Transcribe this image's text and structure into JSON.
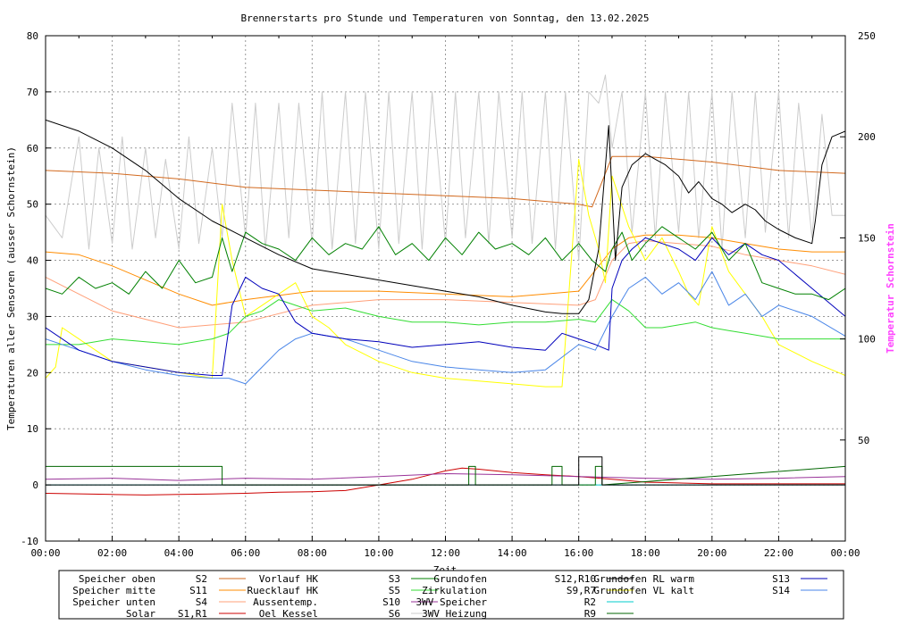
{
  "chart_data": {
    "type": "line",
    "title": "Brennerstarts pro Stunde und Temperaturen von Sonntag, den 13.02.2025",
    "xlabel": "Zeit",
    "ylabel": "Temperaturen aller Sensoren (ausser Schornstein)",
    "y2label": "Temperatur Schornstein",
    "xlim": [
      0,
      24
    ],
    "ylim": [
      -10,
      80
    ],
    "y2lim": [
      0,
      250
    ],
    "x_ticks": [
      "00:00",
      "02:00",
      "04:00",
      "06:00",
      "08:00",
      "10:00",
      "12:00",
      "14:00",
      "16:00",
      "18:00",
      "20:00",
      "22:00",
      "00:00"
    ],
    "y_ticks": [
      "-10",
      "0",
      "10",
      "20",
      "30",
      "40",
      "50",
      "60",
      "70",
      "80"
    ],
    "y2_ticks": [
      "50",
      "100",
      "150",
      "200",
      "250"
    ],
    "grid": true,
    "legend_position": "bottom",
    "series": [
      {
        "name": "Speicher oben",
        "code": "S2",
        "color": "#d2691e",
        "x": [
          0,
          2,
          4,
          6,
          8,
          10,
          12,
          14,
          16,
          16.4,
          17,
          18,
          20,
          22,
          24
        ],
        "y": [
          56,
          55.5,
          54.5,
          53,
          52.5,
          52,
          51.5,
          51,
          50,
          49.5,
          58.5,
          58.5,
          57.5,
          56,
          55.5
        ]
      },
      {
        "name": "Speicher mitte",
        "code": "S11",
        "color": "#ff8c00",
        "x": [
          0,
          1,
          2,
          4,
          5,
          6,
          8,
          10,
          12,
          14,
          16,
          17,
          17.5,
          18,
          19,
          20,
          21,
          22,
          23,
          24
        ],
        "y": [
          41.5,
          41,
          39,
          34,
          32,
          33,
          34.5,
          34.5,
          34,
          33.5,
          34.5,
          42,
          44,
          44.5,
          44.5,
          44,
          43,
          42,
          41.5,
          41.5
        ]
      },
      {
        "name": "Speicher unten",
        "code": "S4",
        "color": "#ffa07a",
        "x": [
          0,
          1,
          2,
          4,
          6,
          8,
          10,
          12,
          14,
          16,
          16.5,
          17,
          17.5,
          18,
          19,
          20,
          21,
          22,
          23,
          24
        ],
        "y": [
          37,
          34,
          31,
          28,
          29,
          32,
          33,
          33,
          32.5,
          32,
          33,
          40,
          43,
          43.5,
          43,
          42.5,
          41,
          40,
          39,
          37.5
        ]
      },
      {
        "name": "Solar",
        "code": "S1,R1",
        "color": "#cc0000",
        "x": [
          0,
          2,
          3,
          4,
          5,
          6,
          7,
          8,
          9,
          10,
          11,
          12,
          12.5,
          13,
          14,
          15,
          16,
          17,
          18,
          20,
          22,
          24
        ],
        "y": [
          -1.5,
          -1.7,
          -1.8,
          -1.7,
          -1.6,
          -1.5,
          -1.3,
          -1.2,
          -1,
          0,
          1,
          2.5,
          3,
          2.8,
          2.2,
          1.8,
          1.5,
          1,
          0.5,
          0.2,
          0.2,
          0.2
        ]
      },
      {
        "name": "Vorlauf HK",
        "code": "S3",
        "color": "#008000",
        "x": [
          0,
          0.5,
          1,
          1.5,
          2,
          2.5,
          3,
          3.5,
          4,
          4.5,
          5,
          5.3,
          5.6,
          6,
          6.5,
          7,
          7.5,
          8,
          8.5,
          9,
          9.5,
          10,
          10.5,
          11,
          11.5,
          12,
          12.5,
          13,
          13.5,
          14,
          14.5,
          15,
          15.5,
          16,
          16.4,
          16.8,
          17,
          17.3,
          17.6,
          18,
          18.5,
          19,
          19.5,
          20,
          20.5,
          21,
          21.5,
          22,
          22.5,
          23,
          23.5,
          24
        ],
        "y": [
          35,
          34,
          37,
          35,
          36,
          34,
          38,
          35,
          40,
          36,
          37,
          44,
          38,
          45,
          43,
          42,
          40,
          44,
          41,
          43,
          42,
          46,
          41,
          43,
          40,
          44,
          41,
          45,
          42,
          43,
          41,
          44,
          40,
          43,
          40,
          38,
          42,
          45,
          40,
          43,
          46,
          44,
          42,
          45,
          40,
          43,
          36,
          35,
          34,
          34,
          33,
          35
        ]
      },
      {
        "name": "Ruecklauf HK",
        "code": "S5",
        "color": "#33dd33",
        "x": [
          0,
          1,
          2,
          3,
          4,
          5,
          5.5,
          6,
          6.5,
          7,
          7.5,
          8,
          9,
          10,
          11,
          12,
          13,
          14,
          15,
          16,
          16.5,
          17,
          17.5,
          18,
          18.5,
          19,
          19.5,
          20,
          20.5,
          21,
          22,
          23,
          24
        ],
        "y": [
          25,
          25,
          26,
          25.5,
          25,
          26,
          27,
          30,
          31,
          33,
          32,
          31,
          31.5,
          30,
          29,
          29,
          28.5,
          29,
          29,
          29.5,
          29,
          33,
          31,
          28,
          28,
          28.5,
          29,
          28,
          27.5,
          27,
          26,
          26,
          26
        ]
      },
      {
        "name": "Aussentemp.",
        "code": "S10",
        "color": "#993399",
        "x": [
          0,
          2,
          4,
          6,
          8,
          10,
          12,
          14,
          16,
          18,
          20,
          22,
          24
        ],
        "y": [
          1,
          1.2,
          0.8,
          1.2,
          1,
          1.5,
          2,
          1.8,
          1.5,
          1.2,
          1,
          1.2,
          1.5
        ]
      },
      {
        "name": "Oel Kessel",
        "code": "S6",
        "color": "#cccccc",
        "x": [
          0,
          0.5,
          1,
          1.3,
          1.6,
          2,
          2.3,
          2.6,
          3,
          3.3,
          3.6,
          4,
          4.3,
          4.6,
          5,
          5.3,
          5.6,
          6,
          6.3,
          6.6,
          7,
          7.3,
          7.6,
          8,
          8.3,
          8.6,
          9,
          9.3,
          9.6,
          10,
          10.3,
          10.6,
          11,
          11.3,
          11.6,
          12,
          12.3,
          12.6,
          13,
          13.3,
          13.6,
          14,
          14.3,
          14.6,
          15,
          15.3,
          15.6,
          16,
          16.3,
          16.6,
          16.8,
          17,
          17.3,
          17.6,
          18,
          18.3,
          18.6,
          19,
          19.3,
          19.6,
          20,
          20.3,
          20.6,
          21,
          21.3,
          21.6,
          22,
          22.3,
          22.6,
          23,
          23.3,
          23.6,
          24
        ],
        "y": [
          48,
          44,
          62,
          42,
          60,
          43,
          62,
          42,
          60,
          44,
          58,
          42,
          62,
          43,
          60,
          44,
          68,
          44,
          68,
          42,
          68,
          44,
          68,
          43,
          70,
          42,
          70,
          43,
          70,
          42,
          70,
          43,
          70,
          42,
          70,
          43,
          70,
          44,
          70,
          43,
          70,
          44,
          70,
          43,
          70,
          42,
          70,
          40,
          70,
          68,
          73,
          60,
          70,
          45,
          70,
          44,
          70,
          45,
          70,
          44,
          70,
          42,
          70,
          44,
          70,
          45,
          70,
          44,
          68,
          44,
          66,
          48,
          48
        ]
      },
      {
        "name": "Grundofen",
        "code": "S12,R10",
        "color": "#000000",
        "x": [
          0,
          1,
          2,
          3,
          4,
          5,
          6,
          7,
          8,
          9,
          10,
          11,
          12,
          13,
          14,
          15,
          15.5,
          16,
          16.3,
          16.6,
          16.9,
          17.1,
          17.3,
          17.6,
          18,
          18.3,
          18.6,
          19,
          19.3,
          19.6,
          20,
          20.3,
          20.6,
          21,
          21.3,
          21.6,
          22,
          22.5,
          23,
          23.1,
          23.3,
          23.6,
          24
        ],
        "y": [
          65,
          63,
          60,
          56,
          51,
          47,
          44,
          41,
          38.5,
          37.5,
          36.5,
          35.5,
          34.5,
          33.5,
          32,
          30.8,
          30.5,
          30.5,
          33,
          42,
          64,
          40,
          53,
          57,
          59,
          58,
          57,
          55,
          52,
          54,
          51,
          50,
          48.5,
          50,
          49,
          47,
          45.5,
          44,
          43,
          47,
          57,
          62,
          63
        ]
      },
      {
        "name": "Zirkulation",
        "code": "S9,R7",
        "color": "#ffff00",
        "x": [
          0,
          0.3,
          0.5,
          1,
          2,
          3,
          4,
          5,
          5.3,
          5.6,
          6,
          6.5,
          7,
          7.5,
          8,
          8.5,
          9,
          10,
          11,
          12,
          13,
          14,
          15,
          15.5,
          16,
          16.3,
          16.6,
          16.8,
          17,
          17.5,
          18,
          18.5,
          19,
          19.3,
          19.6,
          20,
          20.5,
          21,
          21.5,
          22,
          23,
          24
        ],
        "y": [
          19,
          21,
          28,
          26,
          22,
          21,
          20,
          19,
          50,
          40,
          30,
          32,
          34,
          36,
          30,
          28,
          25,
          22,
          20,
          19,
          18.5,
          18,
          17.5,
          17.5,
          58,
          48,
          42,
          36,
          55,
          46,
          40,
          44,
          38,
          34,
          32,
          46,
          38,
          34,
          30,
          25,
          22,
          19.5
        ]
      },
      {
        "name": "3WV Speicher",
        "code": "R2",
        "color": "#00cccc",
        "x": [
          0,
          24
        ],
        "y": [
          0,
          0
        ]
      },
      {
        "name": "3WV Heizung",
        "code": "R9",
        "color": "#006600",
        "x": [
          0,
          5.3,
          5.3,
          12.7,
          12.7,
          12.9,
          12.9,
          15.2,
          15.2,
          15.5,
          15.5,
          16.5,
          16.5,
          16.7,
          16.7,
          24
        ],
        "y": [
          3.3,
          3.3,
          0,
          0,
          3.3,
          3.3,
          0,
          0,
          3.3,
          3.3,
          0,
          0,
          3.3,
          3.3,
          0,
          3.3
        ]
      },
      {
        "name": "Grundofen RL warm",
        "code": "S13",
        "color": "#0000bb",
        "x": [
          0,
          1,
          2,
          3,
          4,
          5,
          5.3,
          5.6,
          6,
          6.5,
          7,
          7.5,
          8,
          9,
          10,
          11,
          12,
          13,
          14,
          15,
          15.5,
          16,
          16.5,
          16.9,
          17,
          17.3,
          17.6,
          18,
          18.5,
          19,
          19.5,
          20,
          20.5,
          21,
          21.5,
          22,
          23,
          24
        ],
        "y": [
          28,
          24,
          22,
          21,
          20,
          19.5,
          19.5,
          32,
          37,
          35,
          34,
          29,
          27,
          26,
          25.5,
          24.5,
          25,
          25.5,
          24.5,
          24,
          27,
          26,
          25,
          24,
          35,
          40,
          42,
          44,
          43,
          42,
          40,
          44,
          41,
          43,
          41,
          40,
          35,
          30
        ]
      },
      {
        "name": "Grundofen VL kalt",
        "code": "S14",
        "color": "#4a86e8",
        "x": [
          0,
          1,
          2,
          3,
          4,
          5,
          5.5,
          6,
          6.5,
          7,
          7.5,
          8,
          9,
          10,
          11,
          12,
          13,
          14,
          15,
          16,
          16.5,
          17,
          17.5,
          18,
          18.5,
          19,
          19.5,
          20,
          20.5,
          21,
          21.5,
          22,
          23,
          24
        ],
        "y": [
          26,
          24,
          22,
          20.5,
          19.5,
          19,
          19,
          18,
          21,
          24,
          26,
          27,
          26,
          24,
          22,
          21,
          20.5,
          20,
          20.5,
          25,
          24,
          30,
          35,
          37,
          34,
          36,
          33,
          38,
          32,
          34,
          30,
          32,
          30,
          26.5
        ]
      },
      {
        "name": "Brennerstarts",
        "code": "",
        "color": "#000000",
        "x": [
          0,
          16,
          16,
          16.7,
          16.7,
          24
        ],
        "y": [
          0,
          0,
          5,
          5,
          0,
          0
        ]
      }
    ],
    "legend": [
      {
        "label": "Speicher oben",
        "code": "S2",
        "color": "#d2691e"
      },
      {
        "label": "Speicher mitte",
        "code": "S11",
        "color": "#ff8c00"
      },
      {
        "label": "Speicher unten",
        "code": "S4",
        "color": "#ffa07a"
      },
      {
        "label": "Solar",
        "code": "S1,R1",
        "color": "#cc0000"
      },
      {
        "label": "Vorlauf HK",
        "code": "S3",
        "color": "#008000"
      },
      {
        "label": "Ruecklauf HK",
        "code": "S5",
        "color": "#33dd33"
      },
      {
        "label": "Aussentemp.",
        "code": "S10",
        "color": "#993399"
      },
      {
        "label": "Oel Kessel",
        "code": "S6",
        "color": "#cccccc"
      },
      {
        "label": "Grundofen",
        "code": "S12,R10",
        "color": "#000000"
      },
      {
        "label": "Zirkulation",
        "code": "S9,R7",
        "color": "#ffff00"
      },
      {
        "label": "3WV Speicher",
        "code": "R2",
        "color": "#00cccc"
      },
      {
        "label": "3WV Heizung",
        "code": "R9",
        "color": "#006600"
      },
      {
        "label": "Grundofen RL warm",
        "code": "S13",
        "color": "#0000bb"
      },
      {
        "label": "Grundofen VL kalt",
        "code": "S14",
        "color": "#4a86e8"
      }
    ]
  },
  "colors": {
    "y2label": "#ff44ff",
    "grid": "#999999",
    "axis": "#000000"
  }
}
